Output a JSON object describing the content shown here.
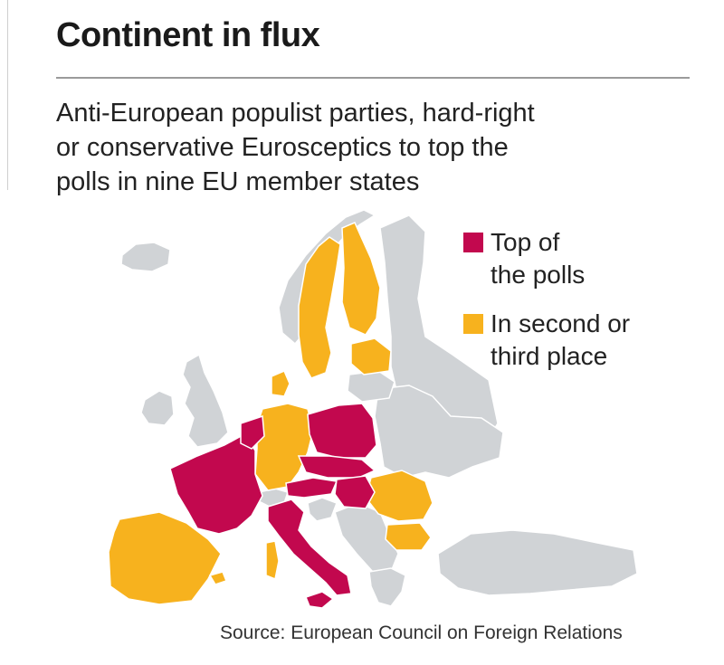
{
  "header": {
    "title": "Continent in flux",
    "subtitle_lines": [
      "Anti-European populist parties, hard-right",
      "or conservative Eurosceptics to top the",
      "polls in nine EU member states"
    ]
  },
  "colors": {
    "top_of_polls": "#c2084e",
    "second_or_third": "#f7b21e",
    "other": "#d0d3d6",
    "background": "#ffffff"
  },
  "legend": [
    {
      "lines": [
        "Top of",
        "the polls"
      ],
      "color_key": "top_of_polls"
    },
    {
      "lines": [
        "In second or",
        "third place"
      ],
      "color_key": "second_or_third"
    }
  ],
  "source": "Source: European Council on Foreign Relations"
}
